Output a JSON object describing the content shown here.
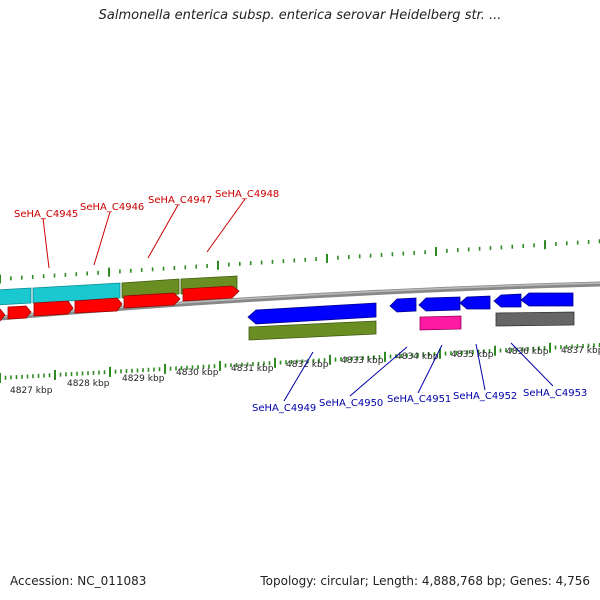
{
  "title": "Salmonella enterica subsp. enterica serovar Heidelberg str. ...",
  "footer": {
    "accession": "Accession: NC_011083",
    "summary": "Topology: circular; Length: 4,888,768 bp; Genes: 4,756"
  },
  "colors": {
    "backbone": "#888888",
    "tick": "#2e8b22",
    "label_top": "#cc0000",
    "label_bottom": "#0000aa",
    "cyan": "#1ac8d0",
    "olive": "#6b8e23",
    "red": "#ff0000",
    "blue": "#0000ff",
    "magenta": "#ff1aa3",
    "gray": "#666666"
  },
  "scale_labels": [
    "4827 kbp",
    "4828 kbp",
    "4829 kbp",
    "4830 kbp",
    "4831 kbp",
    "4832 kbp",
    "4833 kbp",
    "4834 kbp",
    "4835 kbp",
    "4836 kbp",
    "4837 kbp"
  ],
  "top_gene_labels": [
    "SeHA_C4945",
    "SeHA_C4946",
    "SeHA_C4947",
    "SeHA_C4948"
  ],
  "bottom_gene_labels": [
    "SeHA_C4949",
    "SeHA_C4950",
    "SeHA_C4951",
    "SeHA_C4952",
    "SeHA_C4953"
  ]
}
